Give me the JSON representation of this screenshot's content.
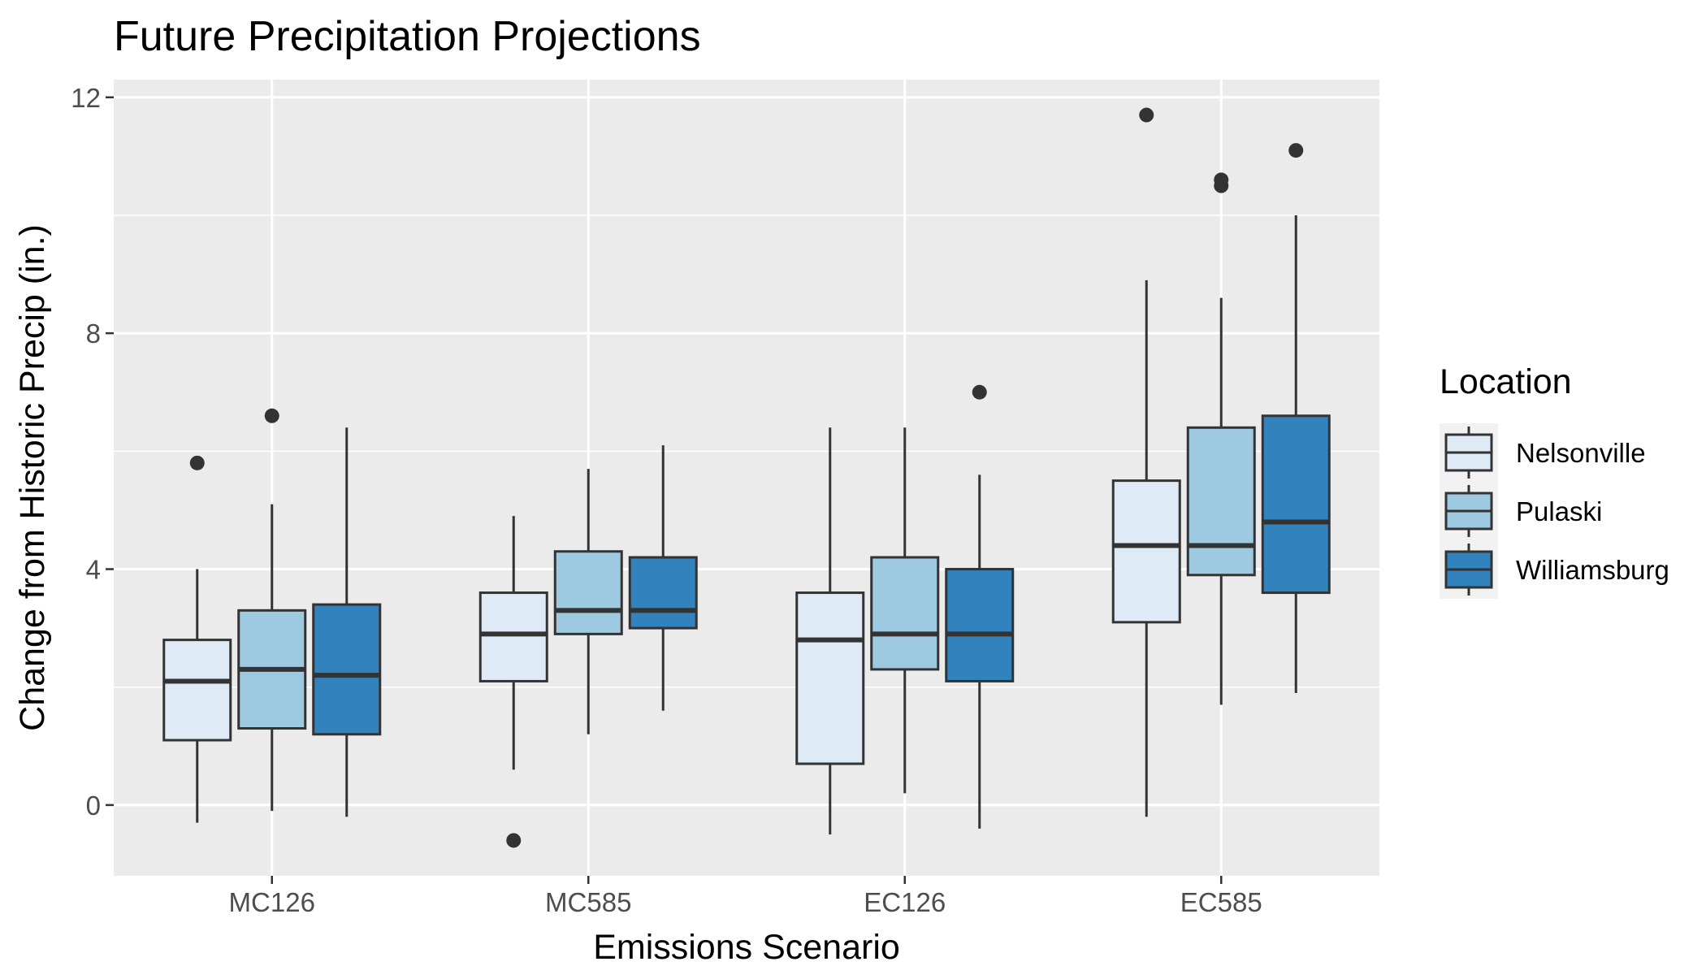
{
  "chart_data": {
    "type": "boxplot",
    "title": "Future Precipitation Projections",
    "xlabel": "Emissions Scenario",
    "ylabel": "Change from Historic Precip (in.)",
    "ylim": [
      -1.2,
      12.3
    ],
    "yticks": [
      0,
      4,
      8,
      12
    ],
    "grid": true,
    "legend": {
      "title": "Location",
      "position": "right"
    },
    "categories": [
      "MC126",
      "MC585",
      "EC126",
      "EC585"
    ],
    "series": [
      {
        "name": "Nelsonville",
        "color": "#deebf7",
        "boxes": [
          {
            "min": -0.3,
            "q1": 1.1,
            "median": 2.1,
            "q3": 2.8,
            "max": 4.0,
            "outliers": [
              5.8
            ]
          },
          {
            "min": 0.6,
            "q1": 2.1,
            "median": 2.9,
            "q3": 3.6,
            "max": 4.9,
            "outliers": [
              -0.6
            ]
          },
          {
            "min": -0.5,
            "q1": 0.7,
            "median": 2.8,
            "q3": 3.6,
            "max": 6.4,
            "outliers": []
          },
          {
            "min": -0.2,
            "q1": 3.1,
            "median": 4.4,
            "q3": 5.5,
            "max": 8.9,
            "outliers": [
              11.7
            ]
          }
        ]
      },
      {
        "name": "Pulaski",
        "color": "#9ecae1",
        "boxes": [
          {
            "min": -0.1,
            "q1": 1.3,
            "median": 2.3,
            "q3": 3.3,
            "max": 5.1,
            "outliers": [
              6.6
            ]
          },
          {
            "min": 1.2,
            "q1": 2.9,
            "median": 3.3,
            "q3": 4.3,
            "max": 5.7,
            "outliers": []
          },
          {
            "min": 0.2,
            "q1": 2.3,
            "median": 2.9,
            "q3": 4.2,
            "max": 6.4,
            "outliers": []
          },
          {
            "min": 1.7,
            "q1": 3.9,
            "median": 4.4,
            "q3": 6.4,
            "max": 8.6,
            "outliers": [
              10.5,
              10.6
            ]
          }
        ]
      },
      {
        "name": "Williamsburg",
        "color": "#3182bd",
        "boxes": [
          {
            "min": -0.2,
            "q1": 1.2,
            "median": 2.2,
            "q3": 3.4,
            "max": 6.4,
            "outliers": []
          },
          {
            "min": 1.6,
            "q1": 3.0,
            "median": 3.3,
            "q3": 4.2,
            "max": 6.1,
            "outliers": []
          },
          {
            "min": -0.4,
            "q1": 2.1,
            "median": 2.9,
            "q3": 4.0,
            "max": 5.6,
            "outliers": [
              7.0
            ]
          },
          {
            "min": 1.9,
            "q1": 3.6,
            "median": 4.8,
            "q3": 6.6,
            "max": 10.0,
            "outliers": [
              11.1
            ]
          }
        ]
      }
    ]
  }
}
